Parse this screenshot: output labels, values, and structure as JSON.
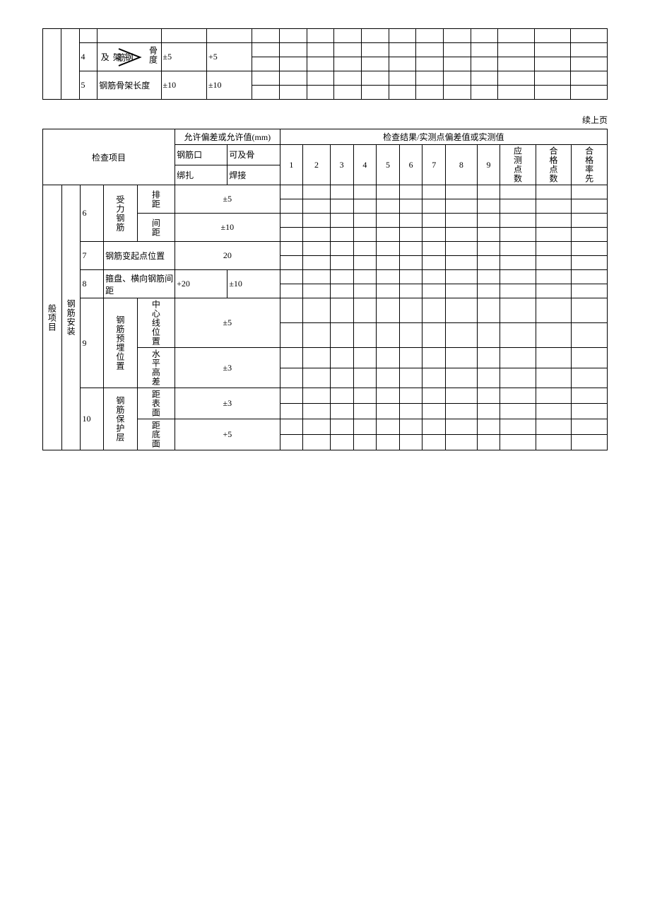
{
  "table1": {
    "rows": [
      {
        "num": "4",
        "label_left": "钢架及",
        "label_mid": "筋",
        "label_right": "骨度",
        "tol1": "±5",
        "tol2": "+5"
      },
      {
        "num": "5",
        "label": "钢筋骨架长度",
        "tol1": "±10",
        "tol2": "±10"
      }
    ]
  },
  "continued_label": "续上页",
  "table2": {
    "header": {
      "check_item": "检查项目",
      "tol_header": "允许偏差或允许值(mm)",
      "result_header": "检查结果/实测点偏差值或实测值",
      "sub1": "钢筋口",
      "sub2": "可及骨",
      "bind": "绑扎",
      "weld": "焊接",
      "nums": [
        "1",
        "2",
        "3",
        "4",
        "5",
        "6",
        "7",
        "8",
        "9"
      ],
      "col_should": "应测点数",
      "col_pass": "合格点数",
      "col_rate": "合格率先"
    },
    "side_labels": {
      "big1": "般项目",
      "big2": "钢筋安装"
    },
    "rows": [
      {
        "num": "6",
        "group": "受力钢筋",
        "subs": [
          {
            "label": "排距",
            "tol": "±5"
          },
          {
            "label": "间距",
            "tol": "±10"
          }
        ]
      },
      {
        "num": "7",
        "label": "钢筋变起点位置",
        "tol": "20"
      },
      {
        "num": "8",
        "label": "箍盘、横向钢筋间距",
        "tol1": "+20",
        "tol2": "±10"
      },
      {
        "num": "9",
        "group": "钢筋预埋位置",
        "subs": [
          {
            "label": "中心线位置",
            "tol": "±5"
          },
          {
            "label": "水平高差",
            "tol": "±3"
          }
        ]
      },
      {
        "num": "10",
        "group": "钢筋保护层",
        "subs": [
          {
            "label": "距表面",
            "tol": "±3"
          },
          {
            "label": "距底面",
            "tol": "+5"
          }
        ]
      }
    ]
  }
}
